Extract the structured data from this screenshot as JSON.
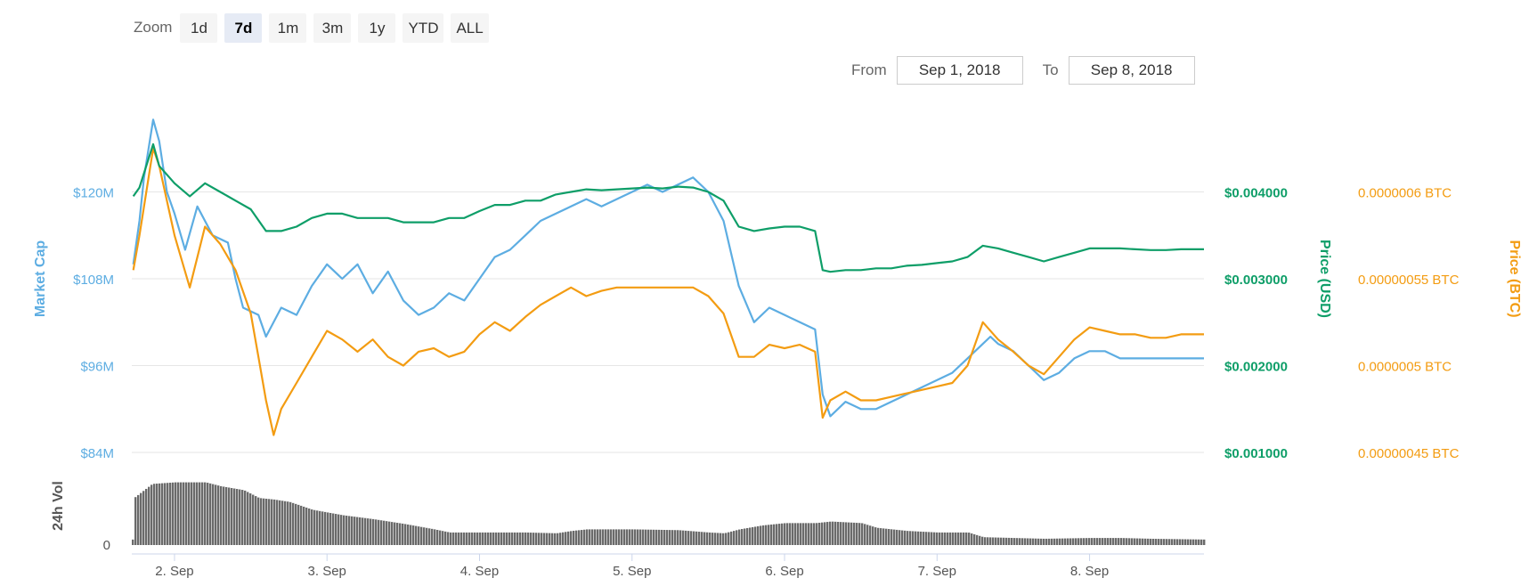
{
  "toolbar": {
    "zoom_label": "Zoom",
    "buttons": [
      "1d",
      "7d",
      "1m",
      "3m",
      "1y",
      "YTD",
      "ALL"
    ],
    "active": "7d"
  },
  "range": {
    "from_label": "From",
    "from_value": "Sep 1, 2018",
    "to_label": "To",
    "to_value": "Sep 8, 2018"
  },
  "colors": {
    "market_cap": "#5dade2",
    "price_usd": "#0e9e68",
    "price_btc": "#f39c12",
    "volume": "#6a6a6a",
    "grid": "#e6e6e6"
  },
  "chart_data": {
    "type": "line",
    "x_ticks": [
      "2. Sep",
      "3. Sep",
      "4. Sep",
      "5. Sep",
      "6. Sep",
      "7. Sep",
      "8. Sep"
    ],
    "x_tick_days": [
      2,
      3,
      4,
      5,
      6,
      7,
      8
    ],
    "xlim_days": [
      1.72,
      8.75
    ],
    "axes": {
      "market_cap": {
        "label": "Market Cap",
        "ticks": [
          "$84M",
          "$96M",
          "$108M",
          "$120M"
        ],
        "tick_values": [
          84,
          96,
          108,
          120
        ],
        "ylim": [
          84,
          132
        ]
      },
      "price_usd": {
        "label": "Price (USD)",
        "ticks": [
          "$0.001000",
          "$0.002000",
          "$0.003000",
          "$0.004000"
        ],
        "tick_values": [
          0.001,
          0.002,
          0.003,
          0.004
        ],
        "ylim": [
          0.001,
          0.005
        ]
      },
      "price_btc": {
        "label": "Price (BTC)",
        "ticks": [
          "0.00000045 BTC",
          "0.0000005 BTC",
          "0.00000055 BTC",
          "0.0000006 BTC"
        ],
        "tick_values": [
          4.5e-07,
          5e-07,
          5.5e-07,
          6e-07
        ],
        "ylim": [
          4.5e-07,
          6.5e-07
        ]
      },
      "volume": {
        "label": "24h Vol",
        "ticks": [
          "0"
        ],
        "tick_values": [
          0
        ]
      }
    },
    "series": [
      {
        "name": "Market Cap",
        "axis": "market_cap",
        "color": "#5dade2",
        "points": [
          [
            1.73,
            110
          ],
          [
            1.77,
            116
          ],
          [
            1.8,
            122
          ],
          [
            1.86,
            130
          ],
          [
            1.9,
            127
          ],
          [
            1.95,
            120
          ],
          [
            2.0,
            117
          ],
          [
            2.07,
            112
          ],
          [
            2.15,
            118
          ],
          [
            2.25,
            114
          ],
          [
            2.35,
            113
          ],
          [
            2.4,
            108
          ],
          [
            2.45,
            104
          ],
          [
            2.55,
            103
          ],
          [
            2.6,
            100
          ],
          [
            2.7,
            104
          ],
          [
            2.8,
            103
          ],
          [
            2.9,
            107
          ],
          [
            3.0,
            110
          ],
          [
            3.1,
            108
          ],
          [
            3.2,
            110
          ],
          [
            3.3,
            106
          ],
          [
            3.4,
            109
          ],
          [
            3.5,
            105
          ],
          [
            3.6,
            103
          ],
          [
            3.7,
            104
          ],
          [
            3.8,
            106
          ],
          [
            3.9,
            105
          ],
          [
            4.0,
            108
          ],
          [
            4.1,
            111
          ],
          [
            4.2,
            112
          ],
          [
            4.3,
            114
          ],
          [
            4.4,
            116
          ],
          [
            4.5,
            117
          ],
          [
            4.6,
            118
          ],
          [
            4.7,
            119
          ],
          [
            4.8,
            118
          ],
          [
            4.9,
            119
          ],
          [
            5.0,
            120
          ],
          [
            5.1,
            121
          ],
          [
            5.2,
            120
          ],
          [
            5.3,
            121
          ],
          [
            5.4,
            122
          ],
          [
            5.5,
            120
          ],
          [
            5.6,
            116
          ],
          [
            5.7,
            107
          ],
          [
            5.8,
            102
          ],
          [
            5.9,
            104
          ],
          [
            6.0,
            103
          ],
          [
            6.1,
            102
          ],
          [
            6.2,
            101
          ],
          [
            6.25,
            92
          ],
          [
            6.3,
            89
          ],
          [
            6.4,
            91
          ],
          [
            6.5,
            90
          ],
          [
            6.6,
            90
          ],
          [
            6.7,
            91
          ],
          [
            6.8,
            92
          ],
          [
            6.9,
            93
          ],
          [
            7.0,
            94
          ],
          [
            7.1,
            95
          ],
          [
            7.2,
            97
          ],
          [
            7.3,
            99
          ],
          [
            7.35,
            100
          ],
          [
            7.4,
            99
          ],
          [
            7.5,
            98
          ],
          [
            7.6,
            96
          ],
          [
            7.7,
            94
          ],
          [
            7.8,
            95
          ],
          [
            7.9,
            97
          ],
          [
            8.0,
            98
          ],
          [
            8.1,
            98
          ],
          [
            8.2,
            97
          ],
          [
            8.3,
            97
          ],
          [
            8.4,
            97
          ],
          [
            8.5,
            97
          ],
          [
            8.6,
            97
          ],
          [
            8.75,
            97
          ]
        ]
      },
      {
        "name": "Price (USD)",
        "axis": "price_usd",
        "color": "#0e9e68",
        "points": [
          [
            1.73,
            0.00395
          ],
          [
            1.77,
            0.00405
          ],
          [
            1.86,
            0.00455
          ],
          [
            1.9,
            0.0043
          ],
          [
            2.0,
            0.0041
          ],
          [
            2.1,
            0.00395
          ],
          [
            2.2,
            0.0041
          ],
          [
            2.3,
            0.004
          ],
          [
            2.4,
            0.0039
          ],
          [
            2.5,
            0.0038
          ],
          [
            2.6,
            0.00355
          ],
          [
            2.7,
            0.00355
          ],
          [
            2.8,
            0.0036
          ],
          [
            2.9,
            0.0037
          ],
          [
            3.0,
            0.00375
          ],
          [
            3.1,
            0.00375
          ],
          [
            3.2,
            0.0037
          ],
          [
            3.3,
            0.0037
          ],
          [
            3.4,
            0.0037
          ],
          [
            3.5,
            0.00365
          ],
          [
            3.6,
            0.00365
          ],
          [
            3.7,
            0.00365
          ],
          [
            3.8,
            0.0037
          ],
          [
            3.9,
            0.0037
          ],
          [
            4.0,
            0.00378
          ],
          [
            4.1,
            0.00385
          ],
          [
            4.2,
            0.00385
          ],
          [
            4.3,
            0.0039
          ],
          [
            4.4,
            0.0039
          ],
          [
            4.5,
            0.00397
          ],
          [
            4.6,
            0.004
          ],
          [
            4.7,
            0.00403
          ],
          [
            4.8,
            0.00402
          ],
          [
            4.9,
            0.00403
          ],
          [
            5.0,
            0.00404
          ],
          [
            5.1,
            0.00405
          ],
          [
            5.2,
            0.00404
          ],
          [
            5.3,
            0.00406
          ],
          [
            5.4,
            0.00405
          ],
          [
            5.5,
            0.004
          ],
          [
            5.6,
            0.0039
          ],
          [
            5.7,
            0.0036
          ],
          [
            5.8,
            0.00355
          ],
          [
            5.9,
            0.00358
          ],
          [
            6.0,
            0.0036
          ],
          [
            6.1,
            0.0036
          ],
          [
            6.2,
            0.00355
          ],
          [
            6.25,
            0.0031
          ],
          [
            6.3,
            0.00308
          ],
          [
            6.4,
            0.0031
          ],
          [
            6.5,
            0.0031
          ],
          [
            6.6,
            0.00312
          ],
          [
            6.7,
            0.00312
          ],
          [
            6.8,
            0.00315
          ],
          [
            6.9,
            0.00316
          ],
          [
            7.0,
            0.00318
          ],
          [
            7.1,
            0.0032
          ],
          [
            7.2,
            0.00325
          ],
          [
            7.3,
            0.00338
          ],
          [
            7.4,
            0.00335
          ],
          [
            7.5,
            0.0033
          ],
          [
            7.6,
            0.00325
          ],
          [
            7.7,
            0.0032
          ],
          [
            7.8,
            0.00325
          ],
          [
            7.9,
            0.0033
          ],
          [
            8.0,
            0.00335
          ],
          [
            8.1,
            0.00335
          ],
          [
            8.2,
            0.00335
          ],
          [
            8.3,
            0.00334
          ],
          [
            8.4,
            0.00333
          ],
          [
            8.5,
            0.00333
          ],
          [
            8.6,
            0.00334
          ],
          [
            8.75,
            0.00334
          ]
        ]
      },
      {
        "name": "Price (BTC)",
        "axis": "price_btc",
        "color": "#f39c12",
        "points": [
          [
            1.73,
            5.55e-07
          ],
          [
            1.77,
            5.75e-07
          ],
          [
            1.86,
            6.25e-07
          ],
          [
            1.9,
            6.15e-07
          ],
          [
            2.0,
            5.75e-07
          ],
          [
            2.05,
            5.6e-07
          ],
          [
            2.1,
            5.45e-07
          ],
          [
            2.2,
            5.8e-07
          ],
          [
            2.3,
            5.7e-07
          ],
          [
            2.4,
            5.55e-07
          ],
          [
            2.5,
            5.3e-07
          ],
          [
            2.55,
            5.05e-07
          ],
          [
            2.6,
            4.8e-07
          ],
          [
            2.65,
            4.6e-07
          ],
          [
            2.7,
            4.75e-07
          ],
          [
            2.8,
            4.9e-07
          ],
          [
            2.9,
            5.05e-07
          ],
          [
            3.0,
            5.2e-07
          ],
          [
            3.1,
            5.15e-07
          ],
          [
            3.2,
            5.08e-07
          ],
          [
            3.3,
            5.15e-07
          ],
          [
            3.4,
            5.05e-07
          ],
          [
            3.5,
            5e-07
          ],
          [
            3.6,
            5.08e-07
          ],
          [
            3.7,
            5.1e-07
          ],
          [
            3.8,
            5.05e-07
          ],
          [
            3.9,
            5.08e-07
          ],
          [
            4.0,
            5.18e-07
          ],
          [
            4.1,
            5.25e-07
          ],
          [
            4.2,
            5.2e-07
          ],
          [
            4.3,
            5.28e-07
          ],
          [
            4.4,
            5.35e-07
          ],
          [
            4.5,
            5.4e-07
          ],
          [
            4.6,
            5.45e-07
          ],
          [
            4.7,
            5.4e-07
          ],
          [
            4.8,
            5.43e-07
          ],
          [
            4.9,
            5.45e-07
          ],
          [
            5.0,
            5.45e-07
          ],
          [
            5.1,
            5.45e-07
          ],
          [
            5.2,
            5.45e-07
          ],
          [
            5.3,
            5.45e-07
          ],
          [
            5.4,
            5.45e-07
          ],
          [
            5.5,
            5.4e-07
          ],
          [
            5.6,
            5.3e-07
          ],
          [
            5.7,
            5.05e-07
          ],
          [
            5.8,
            5.05e-07
          ],
          [
            5.9,
            5.12e-07
          ],
          [
            6.0,
            5.1e-07
          ],
          [
            6.1,
            5.12e-07
          ],
          [
            6.2,
            5.08e-07
          ],
          [
            6.25,
            4.7e-07
          ],
          [
            6.3,
            4.8e-07
          ],
          [
            6.4,
            4.85e-07
          ],
          [
            6.5,
            4.8e-07
          ],
          [
            6.6,
            4.8e-07
          ],
          [
            6.7,
            4.82e-07
          ],
          [
            6.8,
            4.84e-07
          ],
          [
            6.9,
            4.86e-07
          ],
          [
            7.0,
            4.88e-07
          ],
          [
            7.1,
            4.9e-07
          ],
          [
            7.2,
            5e-07
          ],
          [
            7.3,
            5.25e-07
          ],
          [
            7.4,
            5.15e-07
          ],
          [
            7.5,
            5.08e-07
          ],
          [
            7.6,
            5e-07
          ],
          [
            7.7,
            4.95e-07
          ],
          [
            7.8,
            5.05e-07
          ],
          [
            7.9,
            5.15e-07
          ],
          [
            8.0,
            5.22e-07
          ],
          [
            8.1,
            5.2e-07
          ],
          [
            8.2,
            5.18e-07
          ],
          [
            8.3,
            5.18e-07
          ],
          [
            8.4,
            5.16e-07
          ],
          [
            8.5,
            5.16e-07
          ],
          [
            8.6,
            5.18e-07
          ],
          [
            8.75,
            5.18e-07
          ]
        ]
      }
    ],
    "volume_relative": [
      [
        1.73,
        0.6
      ],
      [
        1.85,
        0.78
      ],
      [
        2.0,
        0.8
      ],
      [
        2.2,
        0.8
      ],
      [
        2.3,
        0.75
      ],
      [
        2.45,
        0.7
      ],
      [
        2.55,
        0.6
      ],
      [
        2.65,
        0.58
      ],
      [
        2.75,
        0.55
      ],
      [
        2.9,
        0.45
      ],
      [
        3.1,
        0.38
      ],
      [
        3.3,
        0.33
      ],
      [
        3.5,
        0.27
      ],
      [
        3.7,
        0.2
      ],
      [
        3.8,
        0.16
      ],
      [
        4.0,
        0.16
      ],
      [
        4.3,
        0.16
      ],
      [
        4.5,
        0.15
      ],
      [
        4.6,
        0.18
      ],
      [
        4.7,
        0.2
      ],
      [
        5.0,
        0.2
      ],
      [
        5.3,
        0.19
      ],
      [
        5.5,
        0.16
      ],
      [
        5.6,
        0.15
      ],
      [
        5.7,
        0.2
      ],
      [
        5.85,
        0.25
      ],
      [
        6.0,
        0.28
      ],
      [
        6.2,
        0.28
      ],
      [
        6.3,
        0.3
      ],
      [
        6.5,
        0.28
      ],
      [
        6.6,
        0.22
      ],
      [
        6.8,
        0.18
      ],
      [
        7.0,
        0.16
      ],
      [
        7.2,
        0.16
      ],
      [
        7.3,
        0.1
      ],
      [
        7.5,
        0.09
      ],
      [
        7.7,
        0.08
      ],
      [
        8.0,
        0.09
      ],
      [
        8.2,
        0.09
      ],
      [
        8.4,
        0.08
      ],
      [
        8.75,
        0.07
      ]
    ]
  }
}
